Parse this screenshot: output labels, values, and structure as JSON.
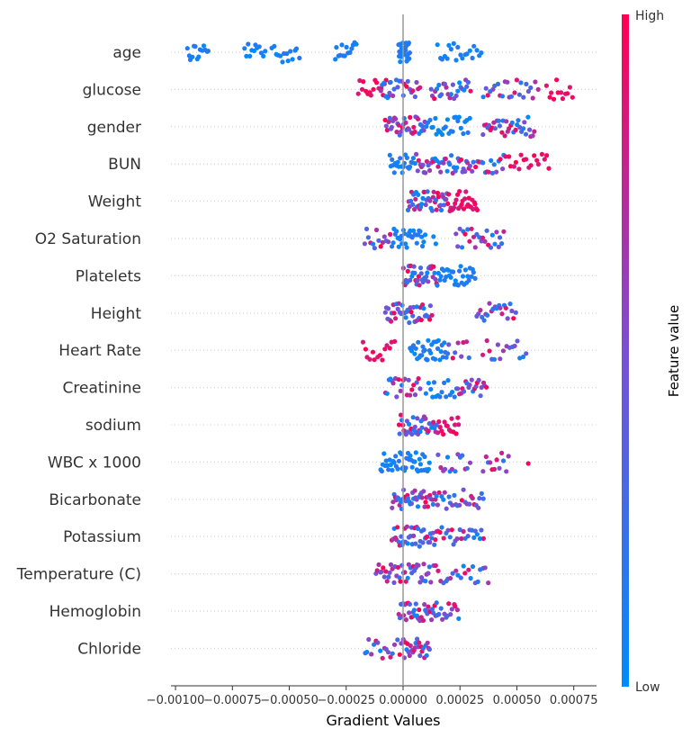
{
  "chart_data": {
    "type": "scatter",
    "subtype": "beeswarm",
    "xlabel": "Gradient Values",
    "xlim": [
      -0.00102,
      0.00085
    ],
    "x_ticks": [
      -0.001,
      -0.00075,
      -0.0005,
      -0.00025,
      0.0,
      0.00025,
      0.0005,
      0.00075
    ],
    "x_tick_labels": [
      "−0.00100",
      "−0.00075",
      "−0.00050",
      "−0.00025",
      "0.00000",
      "0.00025",
      "0.00050",
      "0.00075"
    ],
    "features": [
      {
        "name": "age",
        "clusters": [
          {
            "min": -0.00095,
            "max": -0.00085,
            "n": 14,
            "color": "low"
          },
          {
            "min": -0.0007,
            "max": -0.0006,
            "n": 12,
            "color": "low"
          },
          {
            "min": -0.00058,
            "max": -0.00045,
            "n": 14,
            "color": "low"
          },
          {
            "min": -0.0003,
            "max": -0.0002,
            "n": 14,
            "color": "low"
          },
          {
            "min": -2e-05,
            "max": 3e-05,
            "n": 28,
            "color": "low"
          },
          {
            "min": 0.00015,
            "max": 0.00035,
            "n": 20,
            "color": "low"
          }
        ]
      },
      {
        "name": "glucose",
        "clusters": [
          {
            "min": -0.0002,
            "max": -5e-05,
            "n": 18,
            "color": "high"
          },
          {
            "min": -0.0001,
            "max": 8e-05,
            "n": 24,
            "color": "mixed"
          },
          {
            "min": 0.00012,
            "max": 0.0003,
            "n": 26,
            "color": "mixed"
          },
          {
            "min": 0.00035,
            "max": 0.0006,
            "n": 24,
            "color": "mixed"
          },
          {
            "min": 0.00063,
            "max": 0.00075,
            "n": 12,
            "color": "high"
          }
        ]
      },
      {
        "name": "gender",
        "clusters": [
          {
            "min": -8e-05,
            "max": 0.0001,
            "n": 36,
            "color": "mixed"
          },
          {
            "min": 0.0001,
            "max": 0.0003,
            "n": 26,
            "color": "low"
          },
          {
            "min": 0.00035,
            "max": 0.00058,
            "n": 34,
            "color": "mixed"
          }
        ]
      },
      {
        "name": "BUN",
        "clusters": [
          {
            "min": -6e-05,
            "max": 5e-05,
            "n": 22,
            "color": "low"
          },
          {
            "min": 5e-05,
            "max": 0.0003,
            "n": 42,
            "color": "mixed"
          },
          {
            "min": 0.0003,
            "max": 0.00045,
            "n": 18,
            "color": "mixed"
          },
          {
            "min": 0.00045,
            "max": 0.00065,
            "n": 18,
            "color": "high"
          }
        ]
      },
      {
        "name": "Weight",
        "clusters": [
          {
            "min": 2e-05,
            "max": 0.0002,
            "n": 44,
            "color": "mixed"
          },
          {
            "min": 0.0002,
            "max": 0.00033,
            "n": 28,
            "color": "high"
          }
        ]
      },
      {
        "name": "O2 Saturation",
        "clusters": [
          {
            "min": -0.00017,
            "max": -5e-05,
            "n": 14,
            "color": "mixed"
          },
          {
            "min": -5e-05,
            "max": 0.0001,
            "n": 30,
            "color": "low"
          },
          {
            "min": 0.00013,
            "max": 0.00015,
            "n": 2,
            "color": "mixed"
          },
          {
            "min": 0.00023,
            "max": 0.00045,
            "n": 26,
            "color": "mixed"
          }
        ]
      },
      {
        "name": "Platelets",
        "clusters": [
          {
            "min": 0.0,
            "max": 0.00015,
            "n": 36,
            "color": "mixed"
          },
          {
            "min": 0.00015,
            "max": 0.00032,
            "n": 32,
            "color": "low"
          }
        ]
      },
      {
        "name": "Height",
        "clusters": [
          {
            "min": -8e-05,
            "max": 0.00013,
            "n": 42,
            "color": "mixed"
          },
          {
            "min": 0.00032,
            "max": 0.0005,
            "n": 22,
            "color": "mixed"
          }
        ]
      },
      {
        "name": "Heart Rate",
        "clusters": [
          {
            "min": -0.00018,
            "max": -3e-05,
            "n": 14,
            "color": "high"
          },
          {
            "min": 3e-05,
            "max": 0.0002,
            "n": 34,
            "color": "low"
          },
          {
            "min": 0.0002,
            "max": 0.0003,
            "n": 8,
            "color": "mixed"
          },
          {
            "min": 0.00035,
            "max": 0.00055,
            "n": 16,
            "color": "mixed"
          }
        ]
      },
      {
        "name": "Creatinine",
        "clusters": [
          {
            "min": -8e-05,
            "max": 8e-05,
            "n": 22,
            "color": "mixed"
          },
          {
            "min": 0.0001,
            "max": 0.00024,
            "n": 16,
            "color": "low"
          },
          {
            "min": 0.00024,
            "max": 0.00037,
            "n": 20,
            "color": "mixed"
          }
        ]
      },
      {
        "name": "sodium",
        "clusters": [
          {
            "min": -2e-05,
            "max": 0.00015,
            "n": 38,
            "color": "mixed"
          },
          {
            "min": 0.00015,
            "max": 0.00025,
            "n": 16,
            "color": "high"
          }
        ]
      },
      {
        "name": "WBC x 1000",
        "clusters": [
          {
            "min": -0.0001,
            "max": 0.00012,
            "n": 44,
            "color": "low"
          },
          {
            "min": 0.00015,
            "max": 0.0003,
            "n": 14,
            "color": "mixed"
          },
          {
            "min": 0.00035,
            "max": 0.00047,
            "n": 12,
            "color": "mixed"
          },
          {
            "min": 0.00055,
            "max": 0.00055,
            "n": 1,
            "color": "high"
          }
        ]
      },
      {
        "name": "Bicarbonate",
        "clusters": [
          {
            "min": -5e-05,
            "max": 0.00015,
            "n": 42,
            "color": "mixed"
          },
          {
            "min": 0.00015,
            "max": 0.00036,
            "n": 26,
            "color": "mixed"
          }
        ]
      },
      {
        "name": "Potassium",
        "clusters": [
          {
            "min": -5e-05,
            "max": 0.00015,
            "n": 40,
            "color": "mixed"
          },
          {
            "min": 0.00015,
            "max": 0.00036,
            "n": 24,
            "color": "mixed"
          }
        ]
      },
      {
        "name": "Temperature (C)",
        "clusters": [
          {
            "min": -0.00012,
            "max": 0.00012,
            "n": 40,
            "color": "mixed"
          },
          {
            "min": 0.00012,
            "max": 0.00038,
            "n": 24,
            "color": "mixed"
          }
        ]
      },
      {
        "name": "Hemoglobin",
        "clusters": [
          {
            "min": -2e-05,
            "max": 0.00015,
            "n": 38,
            "color": "mixed"
          },
          {
            "min": 0.00015,
            "max": 0.00025,
            "n": 14,
            "color": "mixed"
          }
        ]
      },
      {
        "name": "Chloride",
        "clusters": [
          {
            "min": -0.00017,
            "max": 0.0,
            "n": 18,
            "color": "mixed"
          },
          {
            "min": 0.0,
            "max": 0.00012,
            "n": 26,
            "color": "mixed"
          }
        ]
      }
    ],
    "colorbar": {
      "title": "Feature value",
      "high_label": "High",
      "low_label": "Low",
      "high_color": "#ff0052",
      "low_color": "#008bfb"
    },
    "grid": "dotted horizontal per feature",
    "zero_line": true
  }
}
